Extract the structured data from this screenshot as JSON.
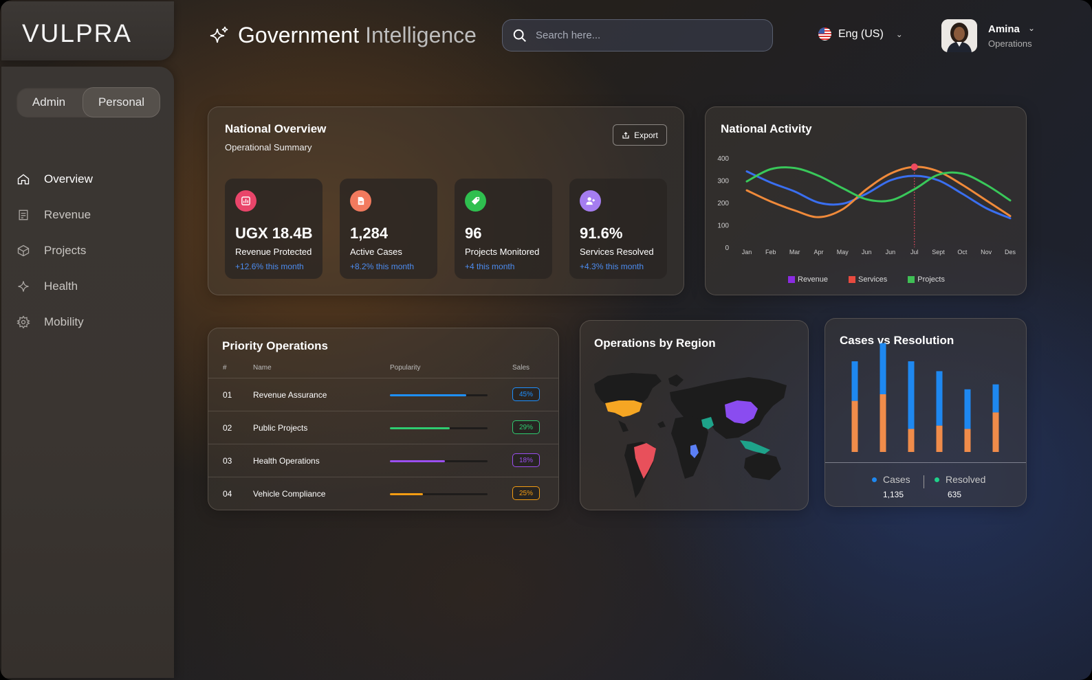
{
  "brand": {
    "logo_text": "VULPRA"
  },
  "sidebar": {
    "toggle": {
      "option_a": "Admin",
      "option_b": "Personal",
      "selected": "Personal"
    },
    "items": [
      {
        "label": "Overview",
        "icon": "home-icon",
        "active": true
      },
      {
        "label": "Revenue",
        "icon": "receipt-icon",
        "active": false
      },
      {
        "label": "Projects",
        "icon": "cube-icon",
        "active": false
      },
      {
        "label": "Health",
        "icon": "sparkle-icon",
        "active": false
      },
      {
        "label": "Mobility",
        "icon": "gear-icon",
        "active": false
      }
    ]
  },
  "header": {
    "title_primary": "Government",
    "title_secondary": "Intelligence",
    "search_placeholder": "Search here...",
    "language": "Eng (US)",
    "user_name": "Amina",
    "user_role": "Operations"
  },
  "overview": {
    "title": "National Overview",
    "subtitle": "Operational Summary",
    "export_label": "Export",
    "stats": [
      {
        "value": "UGX 18.4B",
        "label": "Revenue Protected",
        "change": "+12.6% this month",
        "icon": "bar-chart-icon",
        "color": "#e9456a"
      },
      {
        "value": "1,284",
        "label": "Active Cases",
        "change": "+8.2% this month",
        "icon": "document-icon",
        "color": "#f27a5e"
      },
      {
        "value": "96",
        "label": "Projects Monitored",
        "change": "+4 this month",
        "icon": "tag-icon",
        "color": "#2fbf4f"
      },
      {
        "value": "91.6%",
        "label": "Services Resolved",
        "change": "+4.3% this month",
        "icon": "user-add-icon",
        "color": "#a57df0"
      }
    ]
  },
  "activity": {
    "title": "National Activity",
    "chart_data": {
      "type": "line",
      "categories": [
        "Jan",
        "Feb",
        "Mar",
        "Apr",
        "May",
        "Jun",
        "Jun",
        "Jul",
        "Sept",
        "Oct",
        "Nov",
        "Des"
      ],
      "ylim": [
        0,
        400
      ],
      "yticks": [
        "0",
        "100",
        "200",
        "300",
        "400"
      ],
      "grid": false,
      "legend_position": "bottom",
      "highlight_category": "Jul",
      "series": [
        {
          "name": "Revenue",
          "color": "#3a6ff0",
          "values": [
            340,
            290,
            250,
            200,
            195,
            240,
            300,
            320,
            300,
            240,
            175,
            130
          ]
        },
        {
          "name": "Services",
          "color": "#f08a3a",
          "values": [
            255,
            205,
            165,
            135,
            170,
            260,
            330,
            360,
            340,
            280,
            210,
            140
          ]
        },
        {
          "name": "Projects",
          "color": "#39c85a",
          "values": [
            295,
            350,
            355,
            320,
            265,
            215,
            210,
            260,
            325,
            330,
            280,
            210
          ]
        }
      ],
      "legend_colors": {
        "Revenue": "#8a2be2",
        "Services": "#e84a3f",
        "Projects": "#3fbf55"
      }
    }
  },
  "priority": {
    "title": "Priority Operations",
    "columns": [
      "#",
      "Name",
      "Popularity",
      "Sales"
    ],
    "rows": [
      {
        "num": "01",
        "name": "Revenue Assurance",
        "popularity": 0.78,
        "sales": "45%",
        "color": "#1e90ff"
      },
      {
        "num": "02",
        "name": "Public Projects",
        "popularity": 0.61,
        "sales": "29%",
        "color": "#2ecc71"
      },
      {
        "num": "03",
        "name": "Health Operations",
        "popularity": 0.56,
        "sales": "18%",
        "color": "#9b4ff0"
      },
      {
        "num": "04",
        "name": "Vehicle Compliance",
        "popularity": 0.34,
        "sales": "25%",
        "color": "#f39c12"
      }
    ]
  },
  "region": {
    "title": "Operations by Region"
  },
  "cases": {
    "title": "Cases vs Resolution",
    "legend": [
      {
        "label": "Cases",
        "value": "1,135",
        "color": "#1e88f0"
      },
      {
        "label": "Resolved",
        "value": "635",
        "color": "#1fd18a"
      }
    ],
    "chart_data": {
      "type": "bar",
      "stacked": true,
      "categories": [
        "",
        "",
        "",
        "",
        "",
        ""
      ],
      "series": [
        {
          "color": "#f08c4a",
          "values": [
            62,
            70,
            28,
            32,
            28,
            48
          ]
        },
        {
          "color": "#1e88f0",
          "values": [
            48,
            62,
            82,
            66,
            48,
            34
          ]
        }
      ]
    }
  }
}
